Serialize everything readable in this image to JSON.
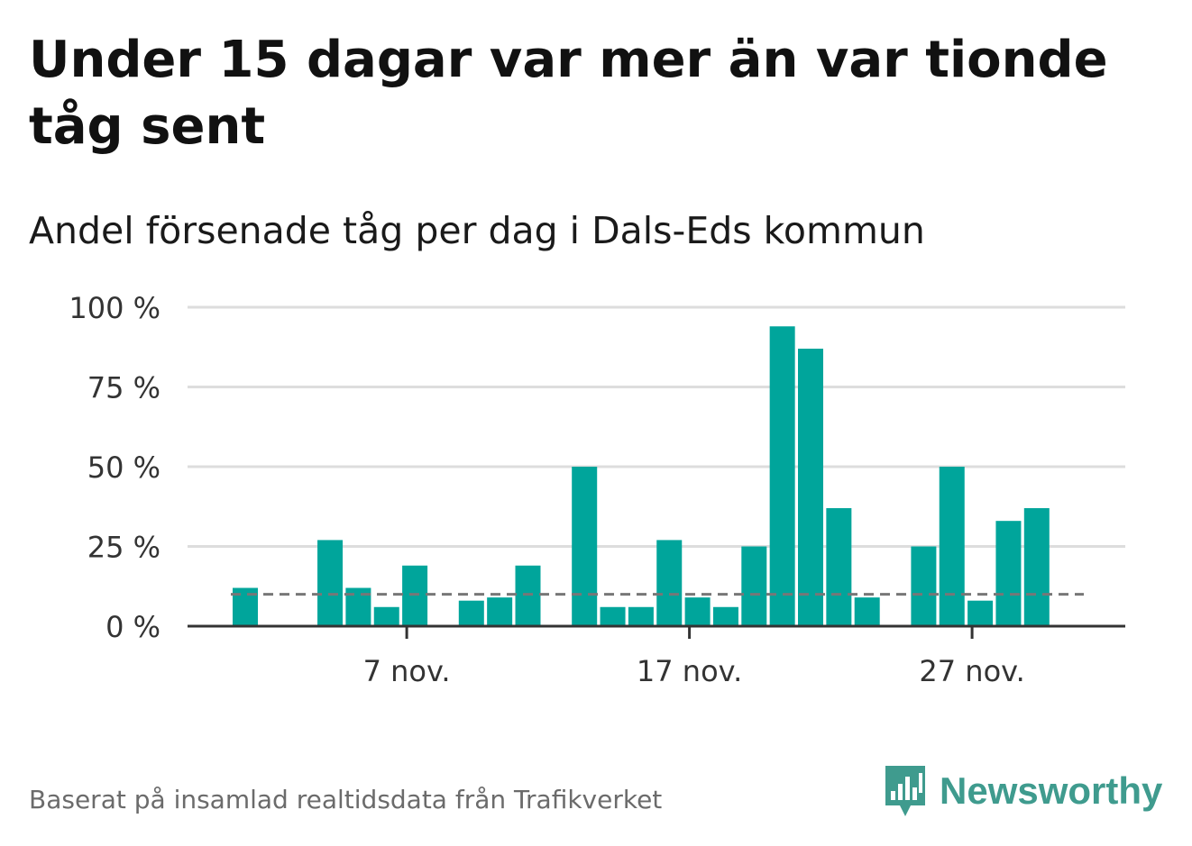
{
  "title": "Under 15 dagar var mer än var tionde tåg sent",
  "subtitle": "Andel försenade tåg per dag i Dals-Eds kommun",
  "source": "Baserat på insamlad realtidsdata från Trafikverket",
  "brand": {
    "name": "Newsworthy",
    "logo_icon": "bar-chart-speech-bubble-icon"
  },
  "colors": {
    "bar": "#00a59b",
    "reference_line": "#777777",
    "grid": "#dddddd",
    "axis": "#333333",
    "brand": "#3f9b8e"
  },
  "chart_data": {
    "type": "bar",
    "x_unit": "day of November",
    "x": [
      1,
      2,
      3,
      4,
      5,
      6,
      7,
      8,
      9,
      10,
      11,
      12,
      13,
      14,
      15,
      16,
      17,
      18,
      19,
      20,
      21,
      22,
      23,
      24,
      25,
      26,
      27,
      28,
      29,
      30
    ],
    "values": [
      12,
      0,
      0,
      27,
      12,
      6,
      19,
      0,
      8,
      9,
      19,
      0,
      50,
      6,
      6,
      27,
      9,
      6,
      25,
      94,
      87,
      37,
      9,
      0,
      25,
      50,
      8,
      33,
      37,
      0
    ],
    "reference_value": 10,
    "reference_style": "dashed",
    "ylim": [
      0,
      100
    ],
    "yticks": [
      0,
      25,
      50,
      75,
      100
    ],
    "ytick_labels": [
      "0 %",
      "25 %",
      "50 %",
      "75 %",
      "100 %"
    ],
    "xticks": [
      7,
      17,
      27
    ],
    "xtick_labels": [
      "7 nov.",
      "17 nov.",
      "27 nov."
    ],
    "grid": true,
    "legend": "none"
  }
}
